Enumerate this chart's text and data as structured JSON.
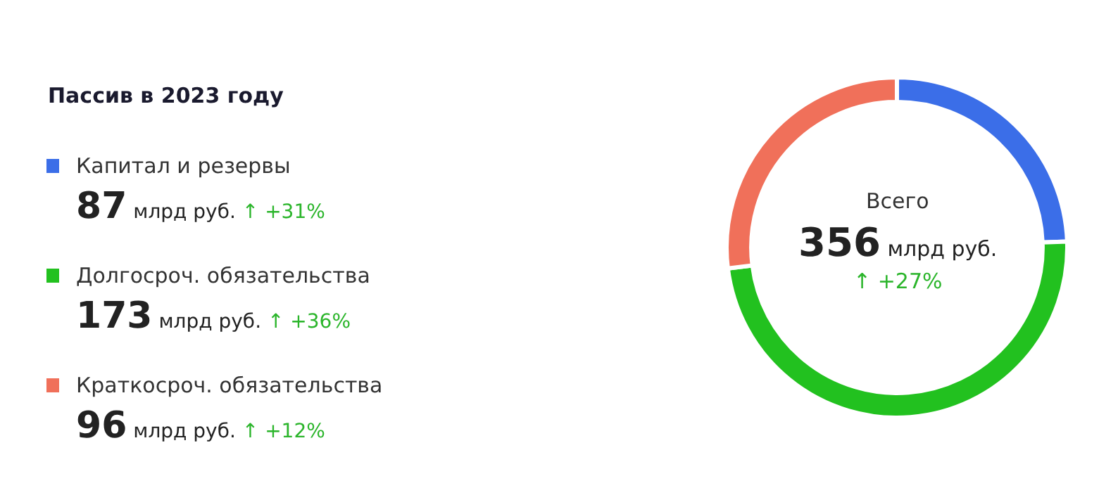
{
  "chart_data": {
    "type": "donut",
    "title": "Пассив в 2023 году",
    "categories": [
      "Капитал и резервы",
      "Долгосроч. обязательства",
      "Краткосроч. обязательства"
    ],
    "values": [
      87,
      173,
      96
    ],
    "colors": [
      "#3b6ee8",
      "#22c11f",
      "#f0705a"
    ],
    "value_labels": [
      "87 млрд руб.",
      "173 млрд руб.",
      "96 млрд руб."
    ],
    "annotations": [
      "↑ +31%",
      "↑ +36%",
      "↑ +12%",
      "Всего",
      "356 млрд руб.",
      "↑ +27%"
    ],
    "legend": "left"
  }
}
